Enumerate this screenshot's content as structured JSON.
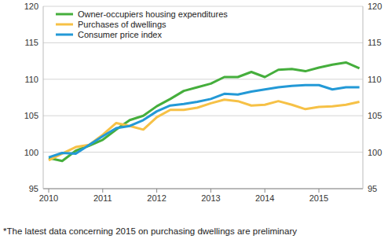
{
  "chart_data": {
    "type": "line",
    "categories": [
      "2010",
      null,
      null,
      null,
      "2011",
      null,
      null,
      null,
      "2012",
      null,
      null,
      null,
      "2013",
      null,
      null,
      null,
      "2014",
      null,
      null,
      null,
      "2015",
      null,
      null,
      null
    ],
    "series": [
      {
        "name": "Owner-occupiers housing expenditures",
        "color": "#45ae3c",
        "values": [
          99.2,
          98.8,
          100.2,
          100.9,
          101.7,
          103.1,
          104.4,
          105.0,
          106.3,
          107.3,
          108.4,
          108.9,
          109.4,
          110.3,
          110.3,
          111.0,
          110.3,
          111.3,
          111.4,
          111.1,
          111.6,
          112.0,
          112.3,
          111.5
        ]
      },
      {
        "name": "Purchases of dwellings",
        "color": "#f6c146",
        "values": [
          98.9,
          99.8,
          100.7,
          101.0,
          102.4,
          104.0,
          103.6,
          103.1,
          104.8,
          105.8,
          105.8,
          106.1,
          106.7,
          107.2,
          107.0,
          106.4,
          106.5,
          107.0,
          106.5,
          105.9,
          106.2,
          106.3,
          106.5,
          106.9
        ]
      },
      {
        "name": "Consumer price index",
        "color": "#2399d6",
        "values": [
          99.3,
          99.9,
          99.8,
          101.0,
          102.2,
          103.3,
          103.6,
          104.4,
          105.6,
          106.4,
          106.6,
          106.9,
          107.3,
          108.0,
          107.9,
          108.3,
          108.6,
          108.9,
          109.1,
          109.2,
          109.2,
          108.6,
          108.9,
          108.9
        ]
      }
    ],
    "ylim": [
      95,
      120
    ],
    "yticks": [
      95,
      100,
      105,
      110,
      115,
      120
    ],
    "grid": true,
    "legend": "upper left",
    "annotations": [
      "*The latest data concerning 2015 on purchasing dwellings are preliminary"
    ]
  }
}
